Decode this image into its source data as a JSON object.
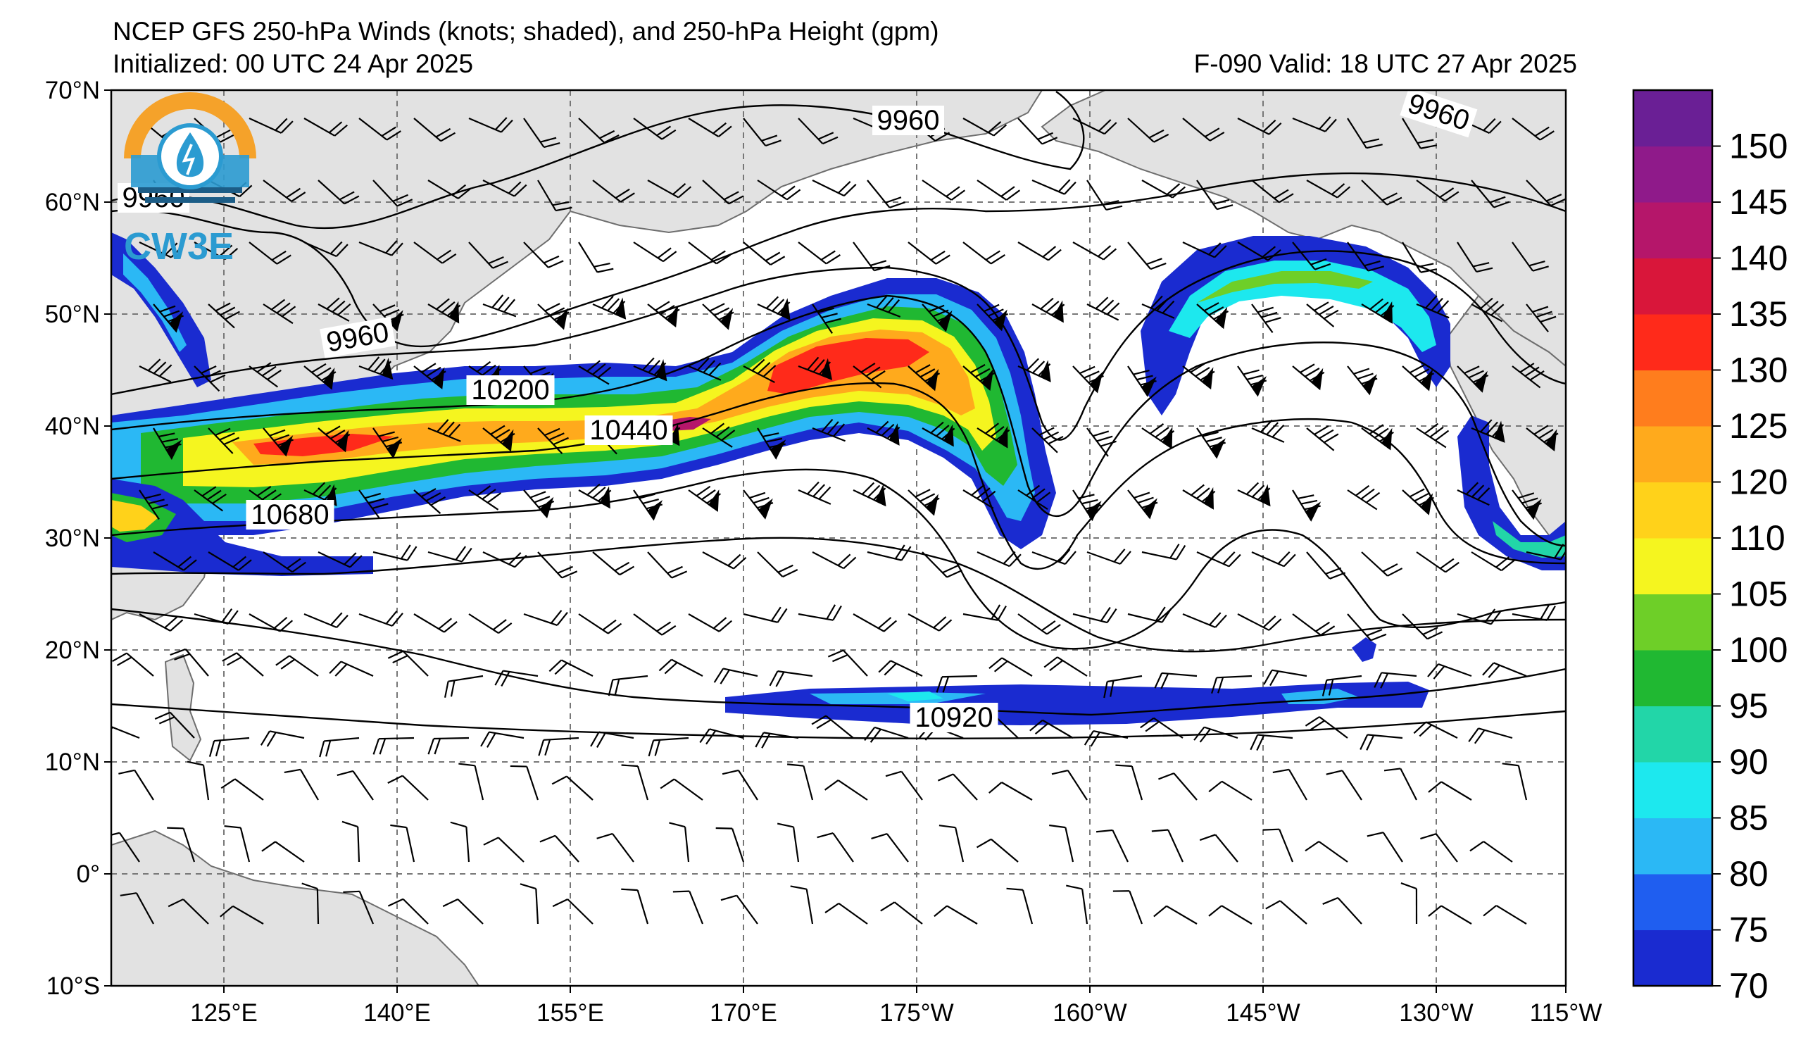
{
  "title": {
    "line1": "NCEP GFS 250-hPa Winds (knots; shaded), and 250-hPa Height (gpm)",
    "line2_left": "Initialized: 00 UTC 24 Apr 2025",
    "line2_right": "F-090  Valid: 18 UTC 27 Apr 2025"
  },
  "logo": {
    "text": "CW3E",
    "colors": {
      "orange": "#f5a22a",
      "blue": "#2b9bd1",
      "navy": "#1c5d87"
    }
  },
  "axes": {
    "lat_ticks": [
      "70°N",
      "60°N",
      "50°N",
      "40°N",
      "30°N",
      "20°N",
      "10°N",
      "0°",
      "10°S"
    ],
    "lon_ticks": [
      "125°E",
      "140°E",
      "155°E",
      "170°E",
      "175°W",
      "160°W",
      "145°W",
      "130°W",
      "115°W"
    ]
  },
  "colorbar": {
    "ticks": [
      "70",
      "75",
      "80",
      "85",
      "90",
      "95",
      "100",
      "105",
      "110",
      "120",
      "125",
      "130",
      "135",
      "140",
      "145",
      "150"
    ],
    "colors": [
      "#1a2bd0",
      "#1f5ef0",
      "#2bb8f5",
      "#1de8ee",
      "#22d6a8",
      "#20b832",
      "#6ecf28",
      "#f5f51f",
      "#ffd21a",
      "#ffaa1c",
      "#ff7d1d",
      "#ff2a1a",
      "#d9163a",
      "#b5166a",
      "#8f1a8a",
      "#6a1f95"
    ],
    "range": [
      70,
      155
    ]
  },
  "height_contour_labels": [
    "9960",
    "9960",
    "9960",
    "9960",
    "10200",
    "10440",
    "10680",
    "10920"
  ],
  "land_color": "#e2e2e2",
  "coast_color": "#6e6e6e"
}
